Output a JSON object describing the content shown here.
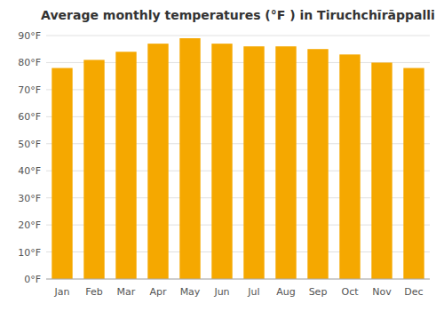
{
  "chart_data": {
    "type": "bar",
    "title": "Average monthly temperatures (°F ) in Tiruchchīrāppalli",
    "categories": [
      "Jan",
      "Feb",
      "Mar",
      "Apr",
      "May",
      "Jun",
      "Jul",
      "Aug",
      "Sep",
      "Oct",
      "Nov",
      "Dec"
    ],
    "values": [
      78,
      81,
      84,
      87,
      89,
      87,
      86,
      86,
      85,
      83,
      80,
      78
    ],
    "color": "#F5A800",
    "ylim": [
      0,
      90
    ],
    "yticks": [
      {
        "value": 0,
        "label": "0°F"
      },
      {
        "value": 10,
        "label": "10°F"
      },
      {
        "value": 20,
        "label": "20°F"
      },
      {
        "value": 30,
        "label": "30°F"
      },
      {
        "value": 40,
        "label": "40°F"
      },
      {
        "value": 50,
        "label": "50°F"
      },
      {
        "value": 60,
        "label": "60°F"
      },
      {
        "value": 70,
        "label": "70°F"
      },
      {
        "value": 80,
        "label": "80°F"
      },
      {
        "value": 90,
        "label": "90°F"
      }
    ],
    "grid": true
  }
}
